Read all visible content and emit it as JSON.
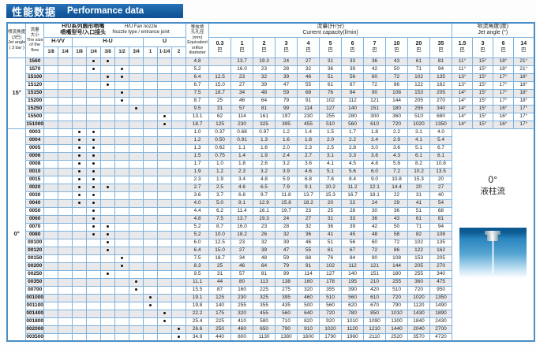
{
  "title": {
    "zh": "性能数据",
    "en": "Performance data"
  },
  "headers": {
    "jet_angle_3bar": [
      "喷流角度",
      "(3巴)",
      "Jet angle",
      "( 3 bar )"
    ],
    "flow_size": [
      "流量",
      "大小",
      "The size",
      "of the",
      "flow"
    ],
    "nozzle_group": {
      "zh1": "H/U系列扇形喷嘴",
      "zh2": "喷嘴型号/入口接头",
      "en1": "H/U  Fan nozzle",
      "en2": "Nozzle type / entrance joint"
    },
    "series": [
      {
        "label": "H-VV",
        "span": 2
      },
      {
        "label": "H-U",
        "span": 5
      },
      {
        "label": "U",
        "span": 3
      }
    ],
    "sizes": [
      "1/8",
      "1/4",
      "1/8",
      "1/4",
      "3/8",
      "1/2",
      "3/4",
      "1",
      "1-1/4",
      "2"
    ],
    "orifice": [
      "等效喷",
      "孔孔径",
      "(mm)",
      "Equivalent",
      "orifice",
      "diameter"
    ],
    "capacity_group": {
      "zh": "流量(升/分)",
      "en": "Current capacity(l/min)"
    },
    "pressures": [
      "0.3",
      "1",
      "2",
      "3",
      "4",
      "5",
      "6",
      "7",
      "10",
      "20",
      "35"
    ],
    "bar_unit": "巴",
    "jet_group": {
      "zh": "喷流角度(度)",
      "en": "Jet angle (°)"
    },
    "jet_pressures": [
      "1.5",
      "3",
      "6",
      "14"
    ]
  },
  "groups": [
    {
      "angle": "15°",
      "rows": [
        {
          "model": "1560",
          "dots": [
            3,
            4
          ],
          "orifice": "4.8",
          "flows": [
            "",
            "13.7",
            "19.3",
            "24",
            "27",
            "31",
            "33",
            "36",
            "43",
            "61",
            "81"
          ],
          "angles": [
            "11°",
            "15°",
            "18°",
            "21°"
          ]
        },
        {
          "model": "1570",
          "dots": [
            3,
            5
          ],
          "orifice": "5.2",
          "flows": [
            "",
            "16.0",
            "23",
            "28",
            "32",
            "36",
            "39",
            "42",
            "50",
            "71",
            "94"
          ],
          "angles": [
            "11°",
            "15°",
            "18°",
            "21°"
          ]
        },
        {
          "model": "15100",
          "dots": [
            4,
            5
          ],
          "orifice": "6.4",
          "flows": [
            "12.5",
            "23",
            "32",
            "39",
            "46",
            "51",
            "56",
            "60",
            "72",
            "102",
            "135"
          ],
          "angles": [
            "13°",
            "15°",
            "17°",
            "18°"
          ]
        },
        {
          "model": "15120",
          "dots": [
            4
          ],
          "orifice": "6.7",
          "flows": [
            "15.0",
            "27",
            "39",
            "47",
            "55",
            "61",
            "67",
            "72",
            "86",
            "122",
            "162"
          ],
          "angles": [
            "13°",
            "15°",
            "17°",
            "18°"
          ]
        },
        {
          "model": "15150",
          "dots": [
            5
          ],
          "orifice": "7.5",
          "flows": [
            "18.7",
            "34",
            "48",
            "59",
            "68",
            "76",
            "84",
            "90",
            "108",
            "153",
            "205"
          ],
          "angles": [
            "14°",
            "15°",
            "17°",
            "18°"
          ]
        },
        {
          "model": "15200",
          "dots": [
            5
          ],
          "orifice": "8.7",
          "flows": [
            "25",
            "46",
            "64",
            "79",
            "91",
            "102",
            "112",
            "121",
            "144",
            "205",
            "270"
          ],
          "angles": [
            "14°",
            "15°",
            "17°",
            "18°"
          ]
        },
        {
          "model": "15250",
          "dots": [
            6
          ],
          "orifice": "9.5",
          "flows": [
            "31",
            "57",
            "81",
            "99",
            "114",
            "127",
            "140",
            "151",
            "180",
            "255",
            "340"
          ],
          "angles": [
            "14°",
            "15°",
            "16°",
            "17°"
          ]
        },
        {
          "model": "15500",
          "dots": [
            8
          ],
          "orifice": "13.1",
          "flows": [
            "62",
            "114",
            "161",
            "197",
            "230",
            "255",
            "280",
            "300",
            "360",
            "510",
            "680"
          ],
          "angles": [
            "14°",
            "15°",
            "16°",
            "17°"
          ]
        },
        {
          "model": "151000",
          "dots": [
            8
          ],
          "orifice": "18.7",
          "flows": [
            "125",
            "230",
            "325",
            "395",
            "455",
            "510",
            "560",
            "610",
            "720",
            "1020",
            "1350"
          ],
          "angles": [
            "14°",
            "15°",
            "16°",
            "17°"
          ]
        }
      ]
    },
    {
      "angle": "0°",
      "merged_cell": {
        "line1": "0°",
        "line2": "液柱流"
      },
      "rows": [
        {
          "model": "0003",
          "dots": [
            2,
            3
          ],
          "orifice": "1.0",
          "flows": [
            "0.37",
            "0.68",
            "0.97",
            "1.2",
            "1.4",
            "1.5",
            "1.7",
            "1.8",
            "2.2",
            "3.1",
            "4.0"
          ]
        },
        {
          "model": "0004",
          "dots": [
            2,
            3
          ],
          "orifice": "1.2",
          "flows": [
            "0.50",
            "0.91",
            "1.3",
            "1.6",
            "1.8",
            "2.0",
            "2.2",
            "2.4",
            "2.9",
            "4.1",
            "5.4"
          ]
        },
        {
          "model": "0005",
          "dots": [
            2,
            3
          ],
          "orifice": "1.3",
          "flows": [
            "0.62",
            "1.1",
            "1.6",
            "2.0",
            "2.3",
            "2.5",
            "2.8",
            "3.0",
            "3.6",
            "5.1",
            "6.7"
          ]
        },
        {
          "model": "0006",
          "dots": [
            2,
            3
          ],
          "orifice": "1.5",
          "flows": [
            "0.75",
            "1.4",
            "1.9",
            "2.4",
            "2.7",
            "3.1",
            "3.3",
            "3.6",
            "4.3",
            "6.1",
            "8.1"
          ]
        },
        {
          "model": "0008",
          "dots": [
            2,
            3
          ],
          "orifice": "1.7",
          "flows": [
            "1.0",
            "1.8",
            "2.6",
            "3.2",
            "3.6",
            "4.1",
            "4.5",
            "4.8",
            "5.8",
            "8.2",
            "10.8"
          ]
        },
        {
          "model": "0010",
          "dots": [
            2,
            3
          ],
          "orifice": "1.9",
          "flows": [
            "1.2",
            "2.3",
            "3.2",
            "3.9",
            "4.6",
            "5.1",
            "5.6",
            "6.0",
            "7.2",
            "10.2",
            "13.5"
          ]
        },
        {
          "model": "0015",
          "dots": [
            2,
            3
          ],
          "orifice": "2.3",
          "flows": [
            "1.9",
            "3.4",
            "4.8",
            "5.9",
            "6.8",
            "7.6",
            "8.4",
            "9.0",
            "10.8",
            "15.3",
            "20"
          ]
        },
        {
          "model": "0020",
          "dots": [
            2,
            3,
            4
          ],
          "orifice": "2.7",
          "flows": [
            "2.5",
            "4.6",
            "6.5",
            "7.9",
            "9.1",
            "10.2",
            "11.2",
            "12.1",
            "14.4",
            "20",
            "27"
          ]
        },
        {
          "model": "0030",
          "dots": [
            2,
            3
          ],
          "orifice": "3.6",
          "flows": [
            "3.7",
            "6.8",
            "9.7",
            "11.8",
            "13.7",
            "15.3",
            "16.7",
            "18.1",
            "22",
            "31",
            "40"
          ]
        },
        {
          "model": "0040",
          "dots": [
            2,
            3
          ],
          "orifice": "4.0",
          "flows": [
            "5.0",
            "9.1",
            "12.9",
            "15.8",
            "18.2",
            "20",
            "22",
            "24",
            "29",
            "41",
            "54"
          ]
        },
        {
          "model": "0050",
          "dots": [
            3
          ],
          "orifice": "4.4",
          "flows": [
            "6.2",
            "11.4",
            "16.1",
            "19.7",
            "23",
            "25",
            "28",
            "30",
            "36",
            "51",
            "68"
          ]
        },
        {
          "model": "0060",
          "dots": [
            3
          ],
          "orifice": "4.8",
          "flows": [
            "7.5",
            "13.7",
            "19.3",
            "24",
            "27",
            "31",
            "33",
            "36",
            "43",
            "61",
            "81"
          ]
        },
        {
          "model": "0070",
          "dots": [
            3,
            4
          ],
          "orifice": "5.2",
          "flows": [
            "8.7",
            "16.0",
            "23",
            "28",
            "32",
            "36",
            "39",
            "42",
            "50",
            "71",
            "94"
          ]
        },
        {
          "model": "0080",
          "dots": [
            3,
            4
          ],
          "orifice": "5.2",
          "flows": [
            "10.0",
            "18.2",
            "26",
            "32",
            "36",
            "41",
            "45",
            "48",
            "58",
            "82",
            "108"
          ]
        },
        {
          "model": "00100",
          "dots": [
            4
          ],
          "orifice": "6.0",
          "flows": [
            "12.5",
            "23",
            "32",
            "39",
            "46",
            "51",
            "56",
            "60",
            "72",
            "102",
            "135"
          ]
        },
        {
          "model": "00120",
          "dots": [
            4
          ],
          "orifice": "6.4",
          "flows": [
            "15.0",
            "27",
            "39",
            "47",
            "55",
            "61",
            "67",
            "72",
            "86",
            "122",
            "162"
          ]
        },
        {
          "model": "00150",
          "dots": [
            5
          ],
          "orifice": "7.5",
          "flows": [
            "18.7",
            "34",
            "48",
            "59",
            "68",
            "76",
            "84",
            "90",
            "108",
            "153",
            "205"
          ]
        },
        {
          "model": "00200",
          "dots": [
            5
          ],
          "orifice": "8.3",
          "flows": [
            "25",
            "46",
            "64",
            "79",
            "91",
            "102",
            "112",
            "121",
            "144",
            "205",
            "270"
          ]
        },
        {
          "model": "00250",
          "dots": [
            4
          ],
          "orifice": "9.5",
          "flows": [
            "31",
            "57",
            "81",
            "99",
            "114",
            "127",
            "140",
            "151",
            "180",
            "255",
            "340"
          ]
        },
        {
          "model": "00350",
          "dots": [
            6
          ],
          "orifice": "11.1",
          "flows": [
            "44",
            "80",
            "113",
            "138",
            "160",
            "178",
            "195",
            "210",
            "255",
            "360",
            "475"
          ]
        },
        {
          "model": "00700",
          "dots": [
            6
          ],
          "orifice": "15.5",
          "flows": [
            "87",
            "160",
            "225",
            "275",
            "320",
            "355",
            "390",
            "420",
            "510",
            "720",
            "950"
          ]
        },
        {
          "model": "001000",
          "dots": [
            7
          ],
          "orifice": "19.1",
          "flows": [
            "125",
            "230",
            "325",
            "395",
            "460",
            "510",
            "560",
            "610",
            "720",
            "1020",
            "1350"
          ]
        },
        {
          "model": "001100",
          "dots": [
            7
          ],
          "orifice": "19.8",
          "flows": [
            "140",
            "255",
            "355",
            "435",
            "500",
            "560",
            "620",
            "670",
            "790",
            "1120",
            "1490"
          ]
        },
        {
          "model": "001400",
          "dots": [
            8
          ],
          "orifice": "22.2",
          "flows": [
            "175",
            "320",
            "455",
            "560",
            "640",
            "720",
            "780",
            "850",
            "1010",
            "1430",
            "1890"
          ]
        },
        {
          "model": "001800",
          "dots": [
            8
          ],
          "orifice": "25.4",
          "flows": [
            "225",
            "410",
            "580",
            "710",
            "820",
            "920",
            "1010",
            "1090",
            "1300",
            "1840",
            "2430"
          ]
        },
        {
          "model": "002000",
          "dots": [
            9
          ],
          "orifice": "26.6",
          "flows": [
            "250",
            "460",
            "650",
            "790",
            "910",
            "1020",
            "1120",
            "1210",
            "1440",
            "2040",
            "2700"
          ]
        },
        {
          "model": "003500",
          "dots": [
            9
          ],
          "orifice": "34.9",
          "flows": [
            "440",
            "800",
            "1130",
            "1380",
            "1600",
            "1790",
            "1960",
            "2110",
            "2520",
            "3570",
            "4720"
          ]
        }
      ]
    }
  ]
}
